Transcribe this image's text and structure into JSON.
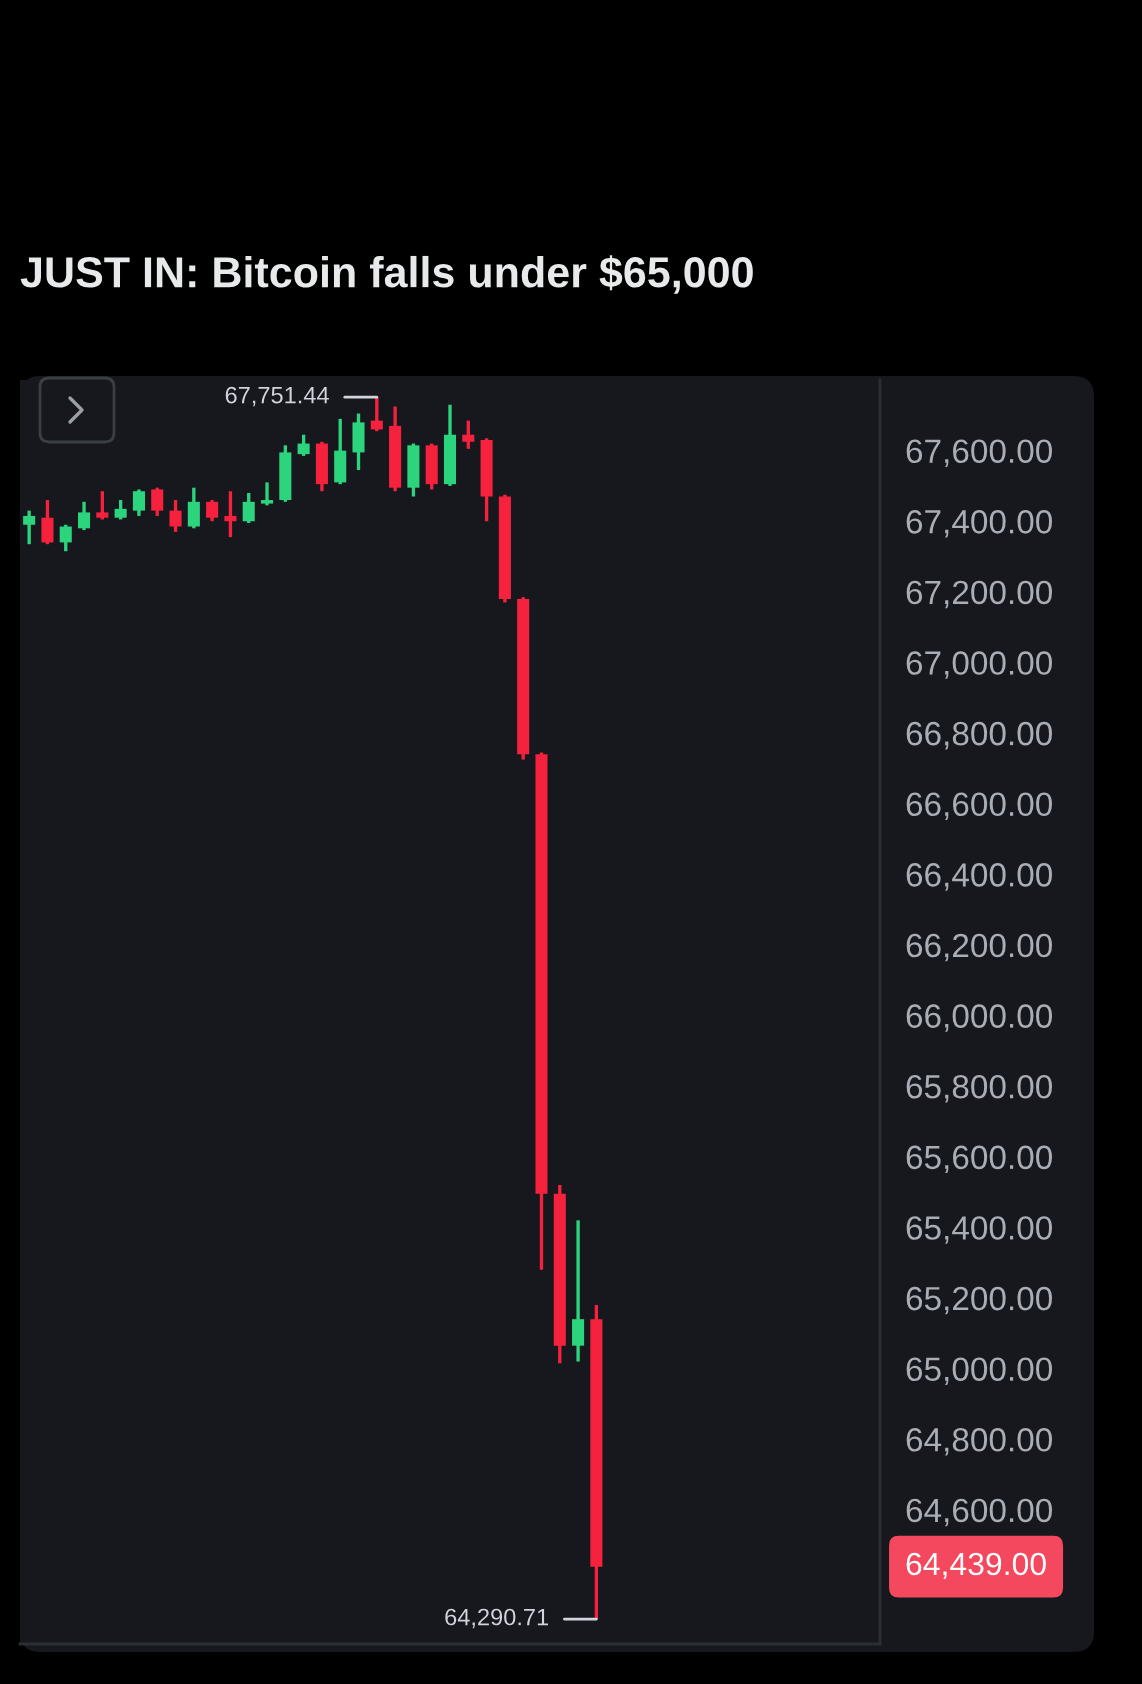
{
  "chart_data": {
    "type": "candlestick",
    "title": "JUST IN: Bitcoin falls under $65,000",
    "categories": [
      null,
      null,
      null,
      null,
      null,
      null,
      null,
      null,
      null,
      null,
      null,
      null,
      null,
      null,
      null,
      null,
      null,
      null,
      null,
      null,
      null,
      null,
      null,
      null,
      null,
      null,
      null,
      null,
      null,
      null,
      null,
      null,
      null,
      null,
      null,
      null,
      null,
      null,
      null,
      null,
      null,
      null,
      null,
      null,
      null,
      null,
      null
    ],
    "ohlc": [
      [
        67390,
        67430,
        67335,
        67415
      ],
      [
        67410,
        67460,
        67335,
        67340
      ],
      [
        67340,
        67390,
        67315,
        67385
      ],
      [
        67380,
        67455,
        67375,
        67425
      ],
      [
        67425,
        67485,
        67405,
        67410
      ],
      [
        67410,
        67460,
        67405,
        67435
      ],
      [
        67430,
        67490,
        67415,
        67485
      ],
      [
        67490,
        67495,
        67415,
        67430
      ],
      [
        67430,
        67460,
        67370,
        67385
      ],
      [
        67385,
        67495,
        67380,
        67455
      ],
      [
        67455,
        67460,
        67400,
        67410
      ],
      [
        67415,
        67485,
        67355,
        67400
      ],
      [
        67400,
        67480,
        67395,
        67455
      ],
      [
        67450,
        67510,
        67445,
        67460
      ],
      [
        67460,
        67615,
        67455,
        67595
      ],
      [
        67590,
        67645,
        67585,
        67620
      ],
      [
        67620,
        67625,
        67485,
        67505
      ],
      [
        67510,
        67690,
        67505,
        67600
      ],
      [
        67595,
        67705,
        67545,
        67680
      ],
      [
        67685,
        67751.44,
        67655,
        67660
      ],
      [
        67670,
        67725,
        67485,
        67495
      ],
      [
        67495,
        67620,
        67470,
        67615
      ],
      [
        67615,
        67620,
        67490,
        67505
      ],
      [
        67505,
        67730,
        67500,
        67645
      ],
      [
        67645,
        67685,
        67605,
        67625
      ],
      [
        67630,
        67635,
        67400,
        67470
      ],
      [
        67470,
        67475,
        67170,
        67180
      ],
      [
        67180,
        67185,
        66725,
        66740
      ],
      [
        66740,
        66745,
        65280,
        65495
      ],
      [
        65495,
        65520,
        65015,
        65065
      ],
      [
        65065,
        65420,
        65020,
        65140
      ],
      [
        65140,
        65180,
        64290.71,
        64439
      ],
      null,
      null,
      null,
      null,
      null,
      null,
      null,
      null,
      null,
      null,
      null,
      null,
      null,
      null,
      null
    ],
    "colors": [
      "#2dd47e",
      "#f6223d",
      "#2dd47e",
      "#2dd47e",
      "#f6223d",
      "#2dd47e",
      "#2dd47e",
      "#f6223d",
      "#f6223d",
      "#2dd47e",
      "#f6223d",
      "#f6223d",
      "#2dd47e",
      "#2dd47e",
      "#2dd47e",
      "#2dd47e",
      "#f6223d",
      "#2dd47e",
      "#2dd47e",
      "#f6223d",
      "#f6223d",
      "#2dd47e",
      "#f6223d",
      "#2dd47e",
      "#f6223d",
      "#f6223d",
      "#f6223d",
      "#f6223d",
      "#f6223d",
      "#f6223d",
      "#2dd47e",
      "#f6223d",
      null,
      null,
      null,
      null,
      null,
      null,
      null,
      null,
      null,
      null,
      null,
      null,
      null,
      null,
      null
    ],
    "ylim": [
      64220,
      67800
    ],
    "yticks": [
      {
        "value": 67600,
        "label": "67,600.00"
      },
      {
        "value": 67400,
        "label": "67,400.00"
      },
      {
        "value": 67200,
        "label": "67,200.00"
      },
      {
        "value": 67000,
        "label": "67,000.00"
      },
      {
        "value": 66800,
        "label": "66,800.00"
      },
      {
        "value": 66600,
        "label": "66,600.00"
      },
      {
        "value": 66400,
        "label": "66,400.00"
      },
      {
        "value": 66200,
        "label": "66,200.00"
      },
      {
        "value": 66000,
        "label": "66,000.00"
      },
      {
        "value": 65800,
        "label": "65,800.00"
      },
      {
        "value": 65600,
        "label": "65,600.00"
      },
      {
        "value": 65400,
        "label": "65,400.00"
      },
      {
        "value": 65200,
        "label": "65,200.00"
      },
      {
        "value": 65000,
        "label": "65,000.00"
      },
      {
        "value": 64800,
        "label": "64,800.00"
      },
      {
        "value": 64600,
        "label": "64,600.00"
      }
    ],
    "tick_labels": "y",
    "annotations": [
      "67,751.44",
      "64,290.71",
      "64,439.00"
    ]
  }
}
